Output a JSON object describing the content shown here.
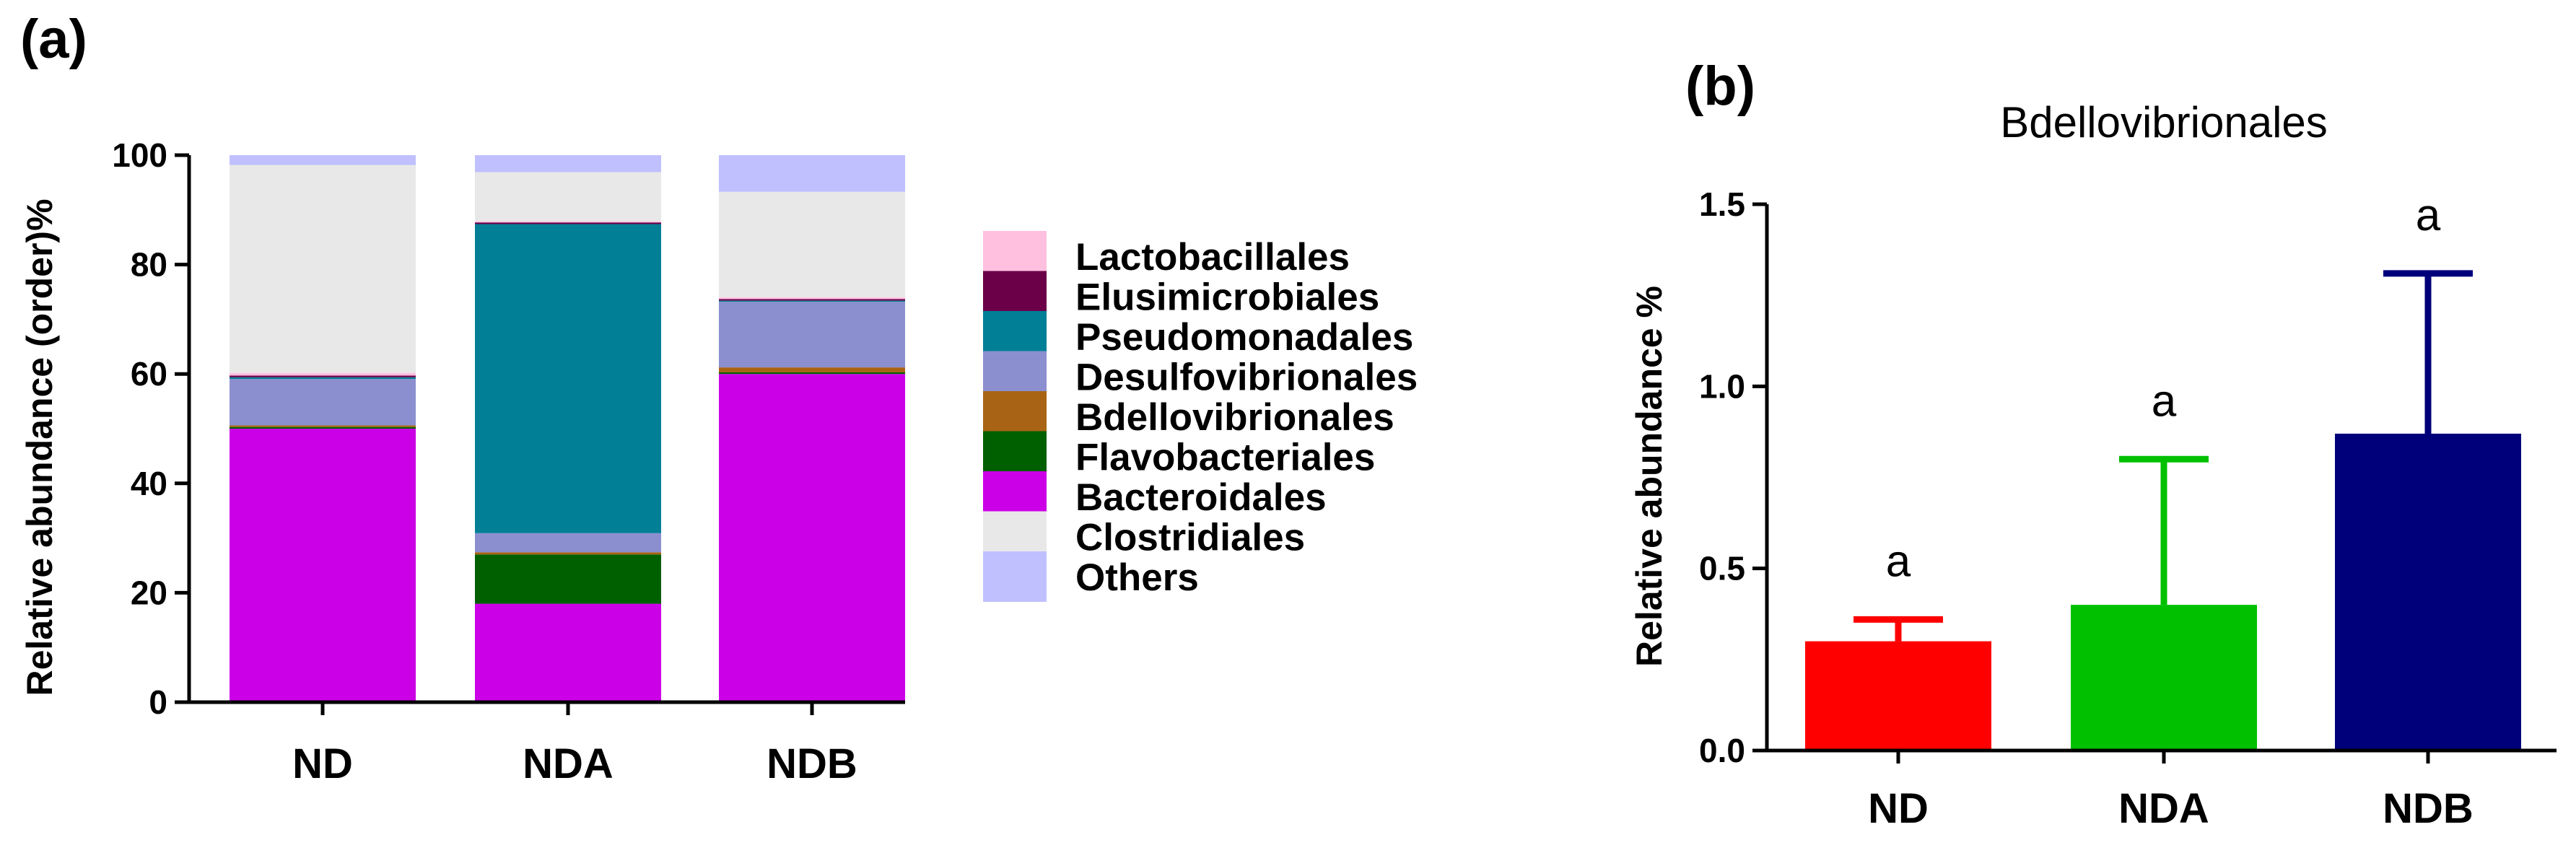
{
  "chart_data": [
    {
      "panel": "(a)",
      "type": "bar",
      "stacked": true,
      "title": "",
      "xlabel": "",
      "ylabel": "Relative abundance (order)%",
      "ylim": [
        0,
        100
      ],
      "yticks": [
        0,
        20,
        40,
        60,
        80,
        100
      ],
      "categories": [
        "ND",
        "NDA",
        "NDB"
      ],
      "legend_position": "right",
      "series": [
        {
          "name": "Bacteroidales",
          "color": "#cc00e6",
          "values": [
            50.0,
            18.0,
            60.0
          ]
        },
        {
          "name": "Flavobacteriales",
          "color": "#006000",
          "values": [
            0.3,
            9.0,
            0.3
          ]
        },
        {
          "name": "Bdellovibrionales",
          "color": "#a86414",
          "values": [
            0.3,
            0.4,
            0.9
          ]
        },
        {
          "name": "Desulfovibrionales",
          "color": "#8c8fcf",
          "values": [
            8.5,
            3.5,
            12.0
          ]
        },
        {
          "name": "Pseudomonadales",
          "color": "#007f96",
          "values": [
            0.3,
            56.5,
            0.2
          ]
        },
        {
          "name": "Elusimicrobiales",
          "color": "#6b0048",
          "values": [
            0.3,
            0.3,
            0.3
          ]
        },
        {
          "name": "Lactobacillales",
          "color": "#ffc0e0",
          "values": [
            0.5,
            0.2,
            0.3
          ]
        },
        {
          "name": "Clostridiales",
          "color": "#e8e8e8",
          "values": [
            38.0,
            9.0,
            19.3
          ]
        },
        {
          "name": "Others",
          "color": "#c0c0ff",
          "values": [
            1.8,
            3.1,
            6.7
          ]
        }
      ],
      "legend_order": [
        "Lactobacillales",
        "Elusimicrobiales",
        "Pseudomonadales",
        "Desulfovibrionales",
        "Bdellovibrionales",
        "Flavobacteriales",
        "Bacteroidales",
        "Clostridiales",
        "Others"
      ]
    },
    {
      "panel": "(b)",
      "type": "bar",
      "title": "Bdellovibrionales",
      "xlabel": "",
      "ylabel": "Relative abundance %",
      "ylim": [
        0,
        1.5
      ],
      "yticks": [
        "0.0",
        "0.5",
        "1.0",
        "1.5"
      ],
      "categories": [
        "ND",
        "NDA",
        "NDB"
      ],
      "values": [
        0.3,
        0.4,
        0.87
      ],
      "error_upper": [
        0.36,
        0.8,
        1.31
      ],
      "colors": [
        "#ff0000",
        "#00c000",
        "#00007a"
      ],
      "significance": [
        "a",
        "a",
        "a"
      ]
    }
  ]
}
